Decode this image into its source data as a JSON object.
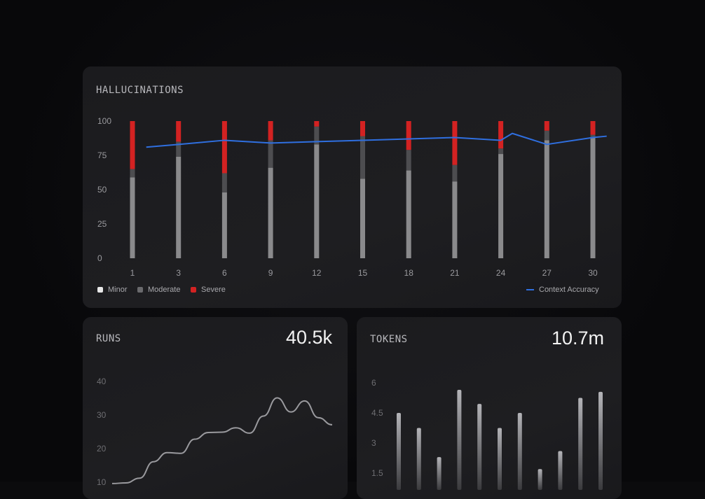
{
  "colors": {
    "minor": "#8a8a8c",
    "moderate": "#4d4d50",
    "severe": "#d32222",
    "accuracy": "#2f6fe0"
  },
  "hallucinations": {
    "title": "HALLUCINATIONS",
    "legend": {
      "minor": "Minor",
      "moderate": "Moderate",
      "severe": "Severe",
      "accuracy": "Context Accuracy"
    }
  },
  "runs": {
    "title": "RUNS",
    "value": "40.5k"
  },
  "tokens": {
    "title": "TOKENS",
    "value": "10.7m"
  },
  "chart_data": [
    {
      "type": "bar",
      "title": "HALLUCINATIONS",
      "stacked": true,
      "categories": [
        "1",
        "3",
        "6",
        "9",
        "12",
        "15",
        "18",
        "21",
        "24",
        "27",
        "30"
      ],
      "yticks": [
        "100",
        "75",
        "50",
        "25",
        "0"
      ],
      "ylim": [
        0,
        100
      ],
      "series": [
        {
          "name": "Minor",
          "values": [
            59,
            74,
            48,
            66,
            83,
            58,
            64,
            56,
            76,
            86,
            88
          ]
        },
        {
          "name": "Moderate",
          "values": [
            6,
            11,
            14,
            20,
            13,
            31,
            15,
            12,
            4,
            7,
            2
          ]
        },
        {
          "name": "Severe",
          "values": [
            35,
            15,
            38,
            14,
            4,
            11,
            21,
            32,
            20,
            7,
            10
          ]
        }
      ],
      "line": {
        "name": "Context Accuracy",
        "x": [
          0.3,
          1,
          2,
          3,
          4,
          5,
          6,
          7,
          8,
          8.25,
          9,
          10,
          10.3
        ],
        "y": [
          81,
          83,
          86,
          84,
          85,
          86,
          87,
          88,
          86,
          91,
          83,
          88,
          89
        ]
      },
      "legend_position": "bottom",
      "grid": false
    },
    {
      "type": "line",
      "title": "RUNS",
      "yticks": [
        "40",
        "30",
        "20",
        "10"
      ],
      "ylim": [
        10,
        45
      ],
      "y": [
        9.6,
        9.8,
        11.2,
        16.1,
        18.8,
        18.6,
        22.8,
        24.8,
        24.9,
        26.2,
        24.6,
        29.7,
        35.1,
        30.9,
        34.2,
        29.2,
        27.1
      ],
      "grid": false
    },
    {
      "type": "bar",
      "title": "TOKENS",
      "yticks": [
        "6",
        "4.5",
        "3",
        "1.5"
      ],
      "ylim": [
        1.5,
        6
      ],
      "values": [
        4.5,
        3.75,
        2.3,
        5.65,
        4.95,
        3.75,
        4.5,
        1.7,
        2.6,
        5.25,
        5.55
      ],
      "grid": false
    }
  ]
}
